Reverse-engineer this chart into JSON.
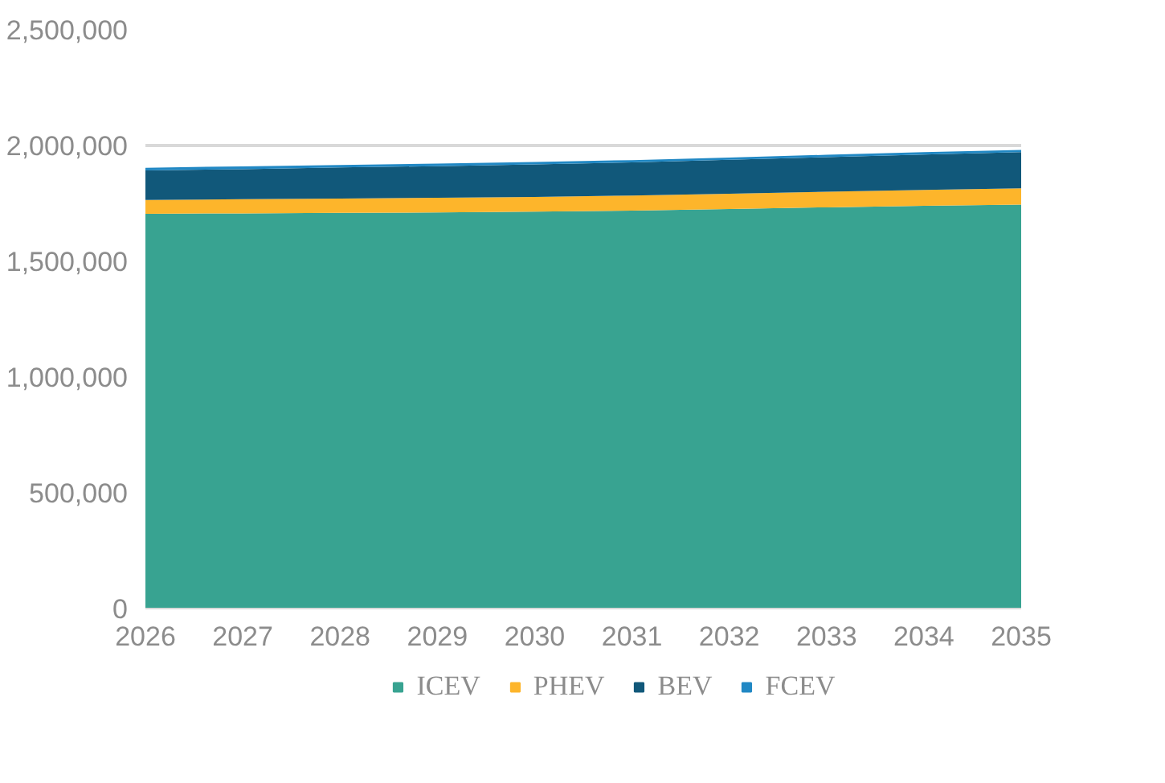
{
  "chart_data": {
    "type": "area",
    "stacked": true,
    "x": [
      2026,
      2027,
      2028,
      2029,
      2030,
      2031,
      2032,
      2033,
      2034,
      2035
    ],
    "series": [
      {
        "name": "ICEV",
        "color": "#38a391",
        "values": [
          1705000,
          1707000,
          1709000,
          1711000,
          1714000,
          1719000,
          1726000,
          1733000,
          1740000,
          1745000
        ]
      },
      {
        "name": "PHEV",
        "color": "#fdb52b",
        "values": [
          60000,
          61000,
          62000,
          63000,
          64000,
          65000,
          66000,
          67000,
          68000,
          70000
        ]
      },
      {
        "name": "BEV",
        "color": "#11587a",
        "values": [
          127000,
          130000,
          134000,
          137000,
          140000,
          143000,
          146000,
          150000,
          153000,
          156000
        ]
      },
      {
        "name": "FCEV",
        "color": "#2188c4",
        "values": [
          12000,
          12000,
          11000,
          11000,
          11000,
          10000,
          10000,
          10000,
          10000,
          10000
        ]
      }
    ],
    "xlim": [
      2026,
      2035
    ],
    "xticks": [
      2026,
      2027,
      2028,
      2029,
      2030,
      2031,
      2032,
      2033,
      2034,
      2035
    ],
    "ylim": [
      0,
      2500000
    ],
    "yticks": [
      {
        "value": 0,
        "label": "0"
      },
      {
        "value": 500000,
        "label": "500,000"
      },
      {
        "value": 1000000,
        "label": "1,000,000"
      },
      {
        "value": 1500000,
        "label": "1,500,000"
      },
      {
        "value": 2000000,
        "label": "2,000,000"
      },
      {
        "value": 2500000,
        "label": "2,500,000"
      }
    ],
    "grid": "y",
    "legend": "bottom"
  }
}
